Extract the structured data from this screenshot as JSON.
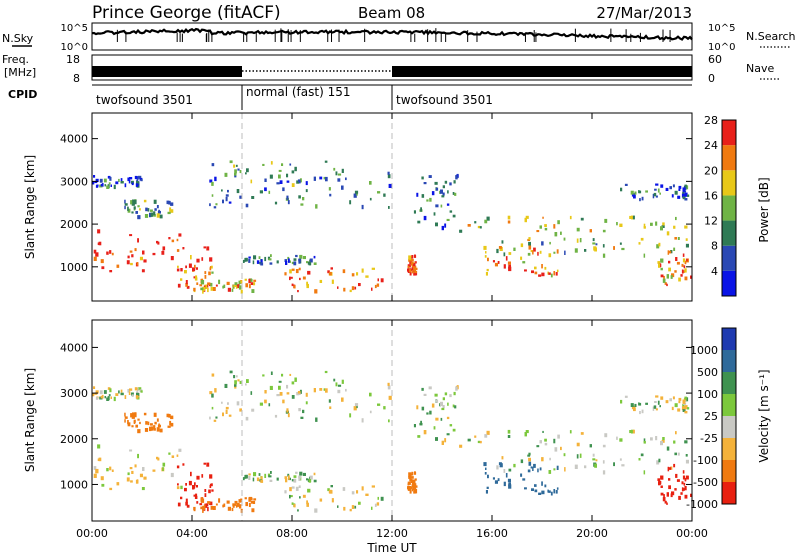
{
  "header": {
    "station": "Prince George (fitACF)",
    "beam": "Beam 08",
    "date": "27/Mar/2013"
  },
  "nsky_panel": {
    "left_label": "N.Sky",
    "right_label": "N.Search",
    "tick_top": "10^5",
    "tick_bottom": "10^0"
  },
  "freq_panel": {
    "left_label_line1": "Freq.",
    "left_label_line2": "[MHz]",
    "left_tick_top": "18",
    "left_tick_bottom": "8",
    "right_label": "Nave",
    "right_tick_top": "60",
    "right_tick_bottom": "0"
  },
  "cpid": {
    "label": "CPID",
    "segments": [
      {
        "name": "twofsound 3501",
        "start_hour": 0,
        "end_hour": 6
      },
      {
        "name": "normal (fast) 151",
        "start_hour": 6,
        "end_hour": 12
      },
      {
        "name": "twofsound 3501",
        "start_hour": 12,
        "end_hour": 24
      }
    ]
  },
  "power_colorbar": {
    "label": "Power [dB]",
    "ticks": [
      "4",
      "8",
      "12",
      "16",
      "20",
      "24",
      "28"
    ],
    "colors": [
      "#0a14e6",
      "#2a48b4",
      "#2f7a55",
      "#6fb345",
      "#e8c818",
      "#f07a10",
      "#e8201a"
    ]
  },
  "velocity_colorbar": {
    "label": "Velocity [m s⁻¹]",
    "ticks": [
      "1000",
      "500",
      "100",
      "25",
      "-25",
      "-100",
      "-500",
      "-1000"
    ],
    "colors": [
      "#1e3ab0",
      "#2f6a9a",
      "#3f9250",
      "#7cc83c",
      "#c9c9c4",
      "#f4b23a",
      "#f07a10",
      "#e82010"
    ]
  },
  "chart_data": {
    "type": "heatmap",
    "x": {
      "label": "Time UT",
      "range_hours": [
        0,
        24
      ],
      "tick_labels": [
        "00:00",
        "04:00",
        "08:00",
        "12:00",
        "16:00",
        "20:00",
        "00:00"
      ],
      "tick_hours": [
        0,
        4,
        8,
        12,
        16,
        20,
        24
      ]
    },
    "y": {
      "label": "Slant Range [km]",
      "range_km": [
        200,
        4600
      ],
      "tick_labels": [
        "1000",
        "2000",
        "3000",
        "4000"
      ],
      "tick_values": [
        1000,
        2000,
        3000,
        4000
      ]
    },
    "mode_boundaries_hours": [
      6,
      12
    ],
    "panels": [
      {
        "name": "power",
        "colorbar": "power_colorbar"
      },
      {
        "name": "velocity",
        "colorbar": "velocity_colorbar"
      }
    ],
    "echo_regions": [
      {
        "t0": 0.0,
        "t1": 3.6,
        "r0": 900,
        "r1": 1900,
        "power": 26,
        "velocity": -40
      },
      {
        "t0": 0.0,
        "t1": 2.0,
        "r0": 2900,
        "r1": 3150,
        "power": 6,
        "velocity": 0
      },
      {
        "t0": 1.2,
        "t1": 3.8,
        "r0": 2200,
        "r1": 2600,
        "power": 12,
        "velocity": -300
      },
      {
        "t0": 3.3,
        "t1": 4.8,
        "r0": 500,
        "r1": 1500,
        "power": 22,
        "velocity": -700
      },
      {
        "t0": 4.0,
        "t1": 6.6,
        "r0": 450,
        "r1": 750,
        "power": 20,
        "velocity": -300
      },
      {
        "t0": 4.6,
        "t1": 12.0,
        "r0": 2400,
        "r1": 3500,
        "power": 10,
        "velocity": 0
      },
      {
        "t0": 7.6,
        "t1": 11.6,
        "r0": 450,
        "r1": 1000,
        "power": 24,
        "velocity": 0
      },
      {
        "t0": 6.0,
        "t1": 9.0,
        "r0": 1100,
        "r1": 1300,
        "power": 8,
        "velocity": 0
      },
      {
        "t0": 12.6,
        "t1": 12.9,
        "r0": 850,
        "r1": 1300,
        "power": 26,
        "velocity": -200
      },
      {
        "t0": 12.8,
        "t1": 14.6,
        "r0": 1900,
        "r1": 3300,
        "power": 8,
        "velocity": 0
      },
      {
        "t0": 14.6,
        "t1": 24.0,
        "r0": 1800,
        "r1": 2200,
        "power": 16,
        "velocity": 0
      },
      {
        "t0": 15.6,
        "t1": 18.6,
        "r0": 800,
        "r1": 1500,
        "power": 22,
        "velocity": 200
      },
      {
        "t0": 16.0,
        "t1": 24.0,
        "r0": 1300,
        "r1": 1700,
        "power": 14,
        "velocity": 0
      },
      {
        "t0": 21.0,
        "t1": 23.8,
        "r0": 2600,
        "r1": 2950,
        "power": 8,
        "velocity": 0
      },
      {
        "t0": 22.6,
        "t1": 24.0,
        "r0": 600,
        "r1": 1500,
        "power": 22,
        "velocity": -600
      }
    ]
  }
}
